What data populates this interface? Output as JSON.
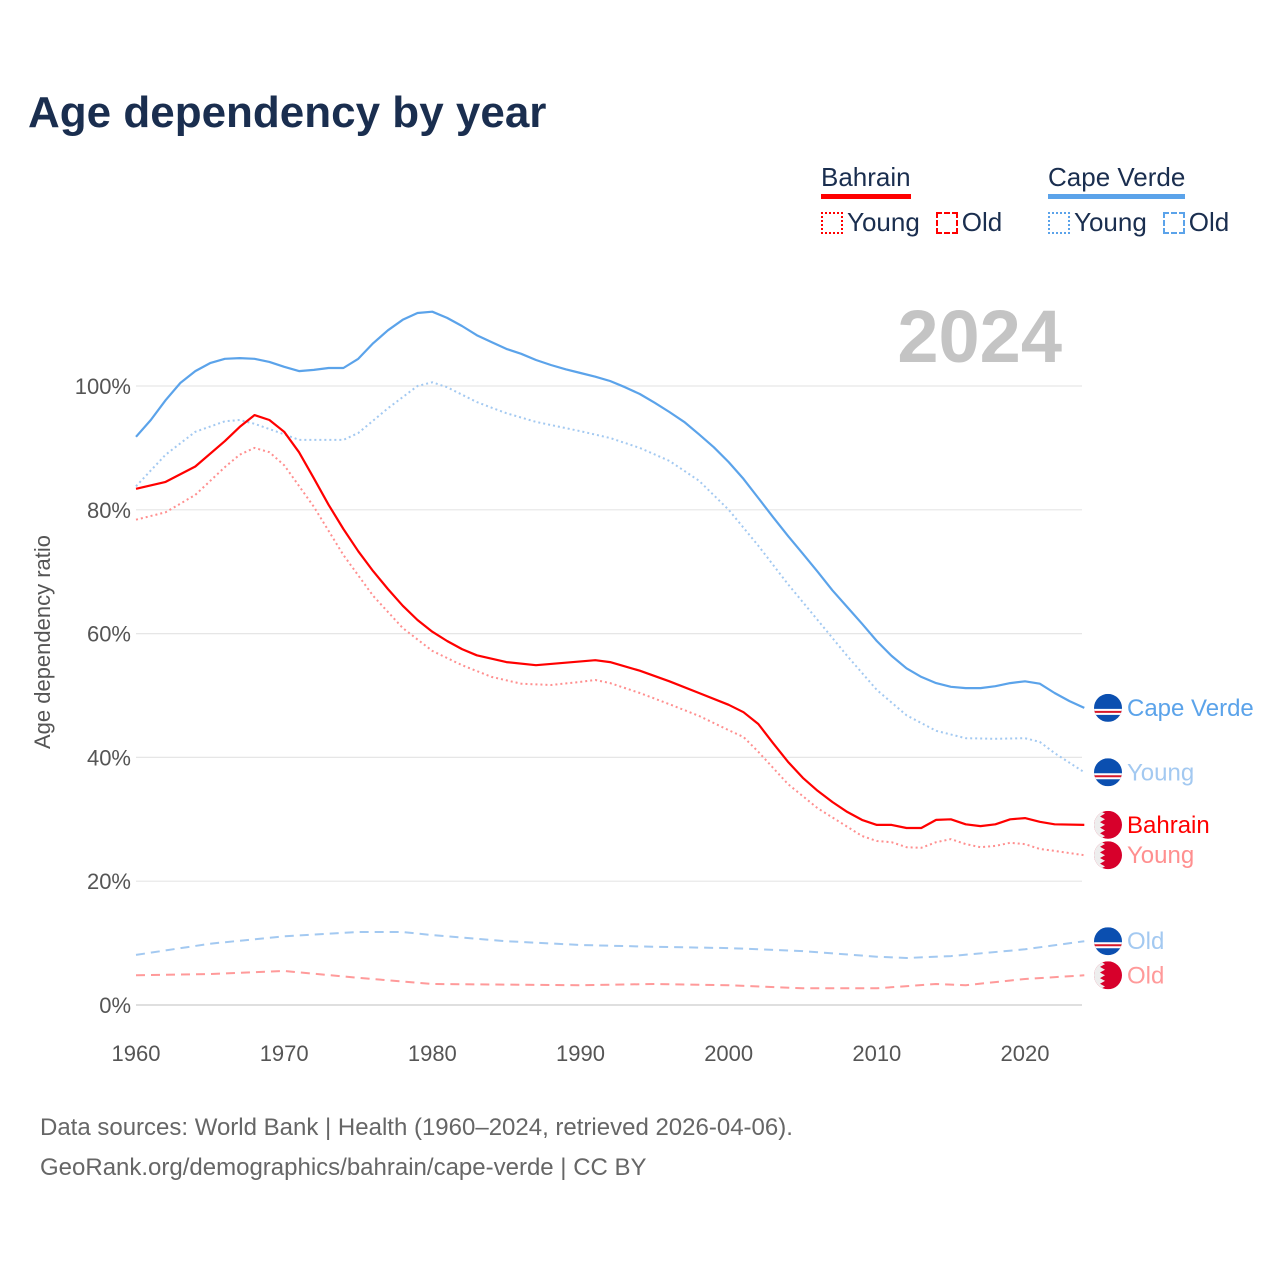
{
  "title": "Age dependency by year",
  "legend": {
    "groups": [
      {
        "country": "Bahrain",
        "color": "#ff0000",
        "items": [
          "Young",
          "Old"
        ]
      },
      {
        "country": "Cape Verde",
        "color": "#5ba3ea",
        "items": [
          "Young",
          "Old"
        ]
      }
    ]
  },
  "year_label": "2024",
  "footer": {
    "line1": "Data sources: World Bank | Health (1960–2024, retrieved 2026-04-06).",
    "line2": "GeoRank.org/demographics/bahrain/cape-verde | CC BY"
  },
  "chart_data": {
    "type": "line",
    "title": "Age dependency by year",
    "xlabel": "",
    "ylabel": "Age dependency ratio",
    "xlim": [
      1960,
      2024
    ],
    "ylim": [
      0,
      115
    ],
    "x_ticks": [
      "1960",
      "1970",
      "1980",
      "1990",
      "2000",
      "2010",
      "2020"
    ],
    "y_ticks": [
      "0%",
      "20%",
      "40%",
      "60%",
      "80%",
      "100%"
    ],
    "grid": true,
    "series": [
      {
        "name": "Cape Verde",
        "end_label": "Cape Verde",
        "flag": "cape-verde",
        "color": "#5ba3ea",
        "style": "solid",
        "x": [
          1960,
          1961,
          1962,
          1963,
          1964,
          1965,
          1966,
          1967,
          1968,
          1969,
          1970,
          1971,
          1972,
          1973,
          1974,
          1975,
          1976,
          1977,
          1978,
          1979,
          1980,
          1981,
          1982,
          1983,
          1984,
          1985,
          1986,
          1987,
          1988,
          1989,
          1990,
          1991,
          1992,
          1993,
          1994,
          1995,
          1996,
          1997,
          1998,
          1999,
          2000,
          2001,
          2002,
          2003,
          2004,
          2005,
          2006,
          2007,
          2008,
          2009,
          2010,
          2011,
          2012,
          2013,
          2014,
          2015,
          2016,
          2017,
          2018,
          2019,
          2020,
          2021,
          2022,
          2023,
          2024
        ],
        "y": [
          91.8,
          94.5,
          97.7,
          100.5,
          102.4,
          103.7,
          104.4,
          104.5,
          104.4,
          103.9,
          103.1,
          102.4,
          102.6,
          102.9,
          102.9,
          104.4,
          106.9,
          109,
          110.7,
          111.8,
          112,
          111,
          109.7,
          108.2,
          107.1,
          106,
          105.2,
          104.2,
          103.4,
          102.7,
          102.1,
          101.5,
          100.8,
          99.8,
          98.7,
          97.3,
          95.8,
          94.2,
          92.2,
          90.1,
          87.7,
          85,
          81.9,
          78.8,
          75.8,
          72.9,
          70,
          67,
          64.3,
          61.6,
          58.8,
          56.4,
          54.4,
          53,
          52,
          51.4,
          51.2,
          51.2,
          51.5,
          52,
          52.3,
          51.9,
          50.4,
          49.1,
          48
        ]
      },
      {
        "name": "Cape Verde Young",
        "end_label": "Young",
        "flag": "cape-verde",
        "color": "#a3c9f1",
        "style": "dotted",
        "x": [
          1960,
          1962,
          1964,
          1966,
          1967,
          1968,
          1970,
          1971,
          1974,
          1975,
          1977,
          1979,
          1980,
          1981,
          1983,
          1985,
          1987,
          1990,
          1992,
          1994,
          1996,
          1998,
          2000,
          2002,
          2004,
          2006,
          2008,
          2010,
          2012,
          2014,
          2016,
          2018,
          2020,
          2021,
          2022,
          2024
        ],
        "y": [
          83.8,
          88.9,
          92.6,
          94.3,
          94.5,
          93.9,
          92.2,
          91.3,
          91.3,
          92.4,
          96.4,
          100,
          100.6,
          99.8,
          97.4,
          95.6,
          94.2,
          92.7,
          91.6,
          90,
          87.9,
          84.7,
          80,
          74.2,
          68,
          62.2,
          56.4,
          50.9,
          46.8,
          44.3,
          43.1,
          43,
          43.1,
          42.5,
          40.7,
          37.6
        ]
      },
      {
        "name": "Bahrain",
        "end_label": "Bahrain",
        "flag": "bahrain",
        "color": "#ff0000",
        "style": "solid",
        "x": [
          1960,
          1962,
          1964,
          1966,
          1967,
          1968,
          1969,
          1970,
          1971,
          1972,
          1973,
          1974,
          1975,
          1976,
          1977,
          1978,
          1979,
          1980,
          1981,
          1982,
          1983,
          1985,
          1987,
          1989,
          1991,
          1992,
          1994,
          1996,
          1998,
          2000,
          2001,
          2002,
          2003,
          2004,
          2005,
          2006,
          2007,
          2008,
          2009,
          2010,
          2011,
          2012,
          2013,
          2014,
          2015,
          2016,
          2017,
          2018,
          2019,
          2020,
          2021,
          2022,
          2024
        ],
        "y": [
          83.4,
          84.5,
          87,
          91.1,
          93.4,
          95.3,
          94.5,
          92.6,
          89.3,
          85.1,
          80.8,
          76.9,
          73.3,
          70.1,
          67.2,
          64.5,
          62.2,
          60.3,
          58.8,
          57.5,
          56.5,
          55.4,
          54.9,
          55.3,
          55.7,
          55.4,
          54,
          52.3,
          50.4,
          48.5,
          47.3,
          45.4,
          42.3,
          39.3,
          36.7,
          34.6,
          32.8,
          31.2,
          29.9,
          29.1,
          29.1,
          28.6,
          28.6,
          29.9,
          30,
          29.2,
          28.9,
          29.2,
          30,
          30.2,
          29.6,
          29.2,
          29.1
        ]
      },
      {
        "name": "Bahrain Young",
        "end_label": "Young",
        "flag": "bahrain",
        "color": "#ff8f8f",
        "style": "dotted",
        "x": [
          1960,
          1962,
          1964,
          1966,
          1967,
          1968,
          1969,
          1970,
          1972,
          1974,
          1976,
          1978,
          1980,
          1982,
          1984,
          1986,
          1988,
          1990,
          1991,
          1992,
          1994,
          1996,
          1998,
          2000,
          2001,
          2002,
          2004,
          2006,
          2008,
          2009,
          2010,
          2011,
          2012,
          2013,
          2014,
          2015,
          2016,
          2017,
          2018,
          2019,
          2020,
          2021,
          2022,
          2024
        ],
        "y": [
          78.4,
          79.6,
          82.4,
          86.9,
          88.9,
          90,
          89.3,
          87.2,
          80.5,
          72.7,
          66.1,
          60.9,
          57.2,
          54.9,
          53,
          51.9,
          51.7,
          52.2,
          52.5,
          52,
          50.4,
          48.6,
          46.7,
          44.4,
          43.3,
          40.9,
          35.7,
          31.8,
          28.8,
          27.3,
          26.5,
          26.3,
          25.5,
          25.4,
          26.3,
          26.8,
          26,
          25.5,
          25.7,
          26.2,
          26,
          25.2,
          24.9,
          24.2
        ]
      },
      {
        "name": "Cape Verde Old",
        "end_label": "Old",
        "flag": "cape-verde",
        "color": "#a3c9f1",
        "style": "dashed",
        "x": [
          1960,
          1965,
          1970,
          1975,
          1978,
          1980,
          1985,
          1990,
          1995,
          2000,
          2005,
          2010,
          2012,
          2015,
          2020,
          2024
        ],
        "y": [
          8.1,
          9.9,
          11.1,
          11.8,
          11.8,
          11.3,
          10.3,
          9.7,
          9.4,
          9.2,
          8.7,
          7.8,
          7.6,
          7.9,
          9,
          10.3
        ]
      },
      {
        "name": "Bahrain Old",
        "end_label": "Old",
        "flag": "bahrain",
        "color": "#ff9a9a",
        "style": "dashed",
        "x": [
          1960,
          1965,
          1970,
          1975,
          1980,
          1990,
          1995,
          2000,
          2005,
          2010,
          2014,
          2016,
          2020,
          2024
        ],
        "y": [
          4.8,
          5,
          5.5,
          4.4,
          3.4,
          3.2,
          3.4,
          3.2,
          2.7,
          2.7,
          3.4,
          3.2,
          4.2,
          4.8
        ]
      }
    ]
  }
}
